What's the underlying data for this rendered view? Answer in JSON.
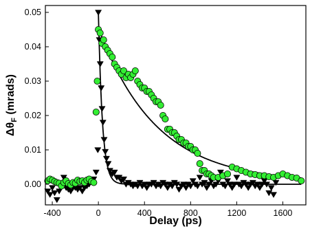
{
  "chart_data": {
    "type": "scatter",
    "title": "",
    "xlabel": "Delay (ps)",
    "ylabel_main": "Δθ",
    "ylabel_sub": "F",
    "ylabel_unit": " (mrads)",
    "xlim": [
      -460,
      1800
    ],
    "ylim": [
      -0.006,
      0.052
    ],
    "xticks": [
      -400,
      0,
      400,
      800,
      1200,
      1600
    ],
    "xtick_labels": [
      "-400",
      "0",
      "400",
      "800",
      "1200",
      "1600"
    ],
    "yticks": [
      0.0,
      0.01,
      0.02,
      0.03,
      0.04,
      0.05
    ],
    "ytick_labels": [
      "0.00",
      "0.01",
      "0.02",
      "0.03",
      "0.04",
      "0.05"
    ],
    "grid": false,
    "legend": "none",
    "series": [
      {
        "marker": "circle",
        "color": "#33ee33",
        "points": [
          [
            -440,
            0.001
          ],
          [
            -420,
            0.0015
          ],
          [
            -400,
            0.0012
          ],
          [
            -380,
            0.0008
          ],
          [
            -360,
            0.0005
          ],
          [
            -340,
            0.0003
          ],
          [
            -320,
            -0.0005
          ],
          [
            -300,
            0.0005
          ],
          [
            -280,
            0.001
          ],
          [
            -260,
            0.0002
          ],
          [
            -240,
            -0.0002
          ],
          [
            -220,
            0.0005
          ],
          [
            -200,
            0.0003
          ],
          [
            -180,
            0.0012
          ],
          [
            -160,
            0.0008
          ],
          [
            -140,
            0.001
          ],
          [
            -120,
            0.0005
          ],
          [
            -100,
            0.0012
          ],
          [
            -80,
            0.0015
          ],
          [
            -60,
            0.0008
          ],
          [
            -40,
            0.0005
          ],
          [
            -20,
            0.021
          ],
          [
            -10,
            0.03
          ],
          [
            0,
            0.045
          ],
          [
            15,
            0.044
          ],
          [
            30,
            0.041
          ],
          [
            45,
            0.042
          ],
          [
            60,
            0.04
          ],
          [
            80,
            0.039
          ],
          [
            100,
            0.038
          ],
          [
            120,
            0.037
          ],
          [
            140,
            0.035
          ],
          [
            160,
            0.034
          ],
          [
            180,
            0.033
          ],
          [
            200,
            0.032
          ],
          [
            220,
            0.033
          ],
          [
            240,
            0.031
          ],
          [
            260,
            0.032
          ],
          [
            280,
            0.031
          ],
          [
            300,
            0.032
          ],
          [
            320,
            0.033
          ],
          [
            340,
            0.03
          ],
          [
            360,
            0.029
          ],
          [
            380,
            0.028
          ],
          [
            400,
            0.028
          ],
          [
            420,
            0.027
          ],
          [
            440,
            0.027
          ],
          [
            460,
            0.026
          ],
          [
            480,
            0.025
          ],
          [
            500,
            0.024
          ],
          [
            520,
            0.024
          ],
          [
            540,
            0.023
          ],
          [
            560,
            0.02
          ],
          [
            580,
            0.019
          ],
          [
            600,
            0.016
          ],
          [
            620,
            0.016
          ],
          [
            640,
            0.015
          ],
          [
            660,
            0.015
          ],
          [
            680,
            0.014
          ],
          [
            700,
            0.013
          ],
          [
            720,
            0.013
          ],
          [
            740,
            0.012
          ],
          [
            760,
            0.012
          ],
          [
            780,
            0.011
          ],
          [
            800,
            0.011
          ],
          [
            820,
            0.01
          ],
          [
            840,
            0.01
          ],
          [
            860,
            0.009
          ],
          [
            880,
            0.006
          ],
          [
            900,
            0.004
          ],
          [
            920,
            0.004
          ],
          [
            940,
            0.003
          ],
          [
            960,
            0.003
          ],
          [
            980,
            0.0025
          ],
          [
            1000,
            0.002
          ],
          [
            1040,
            0.002
          ],
          [
            1080,
            0.0025
          ],
          [
            1120,
            0.003
          ],
          [
            1160,
            0.005
          ],
          [
            1200,
            0.0045
          ],
          [
            1240,
            0.004
          ],
          [
            1280,
            0.0035
          ],
          [
            1320,
            0.003
          ],
          [
            1360,
            0.0028
          ],
          [
            1400,
            0.0025
          ],
          [
            1440,
            0.0025
          ],
          [
            1480,
            0.0022
          ],
          [
            1520,
            0.002
          ],
          [
            1560,
            0.0025
          ],
          [
            1600,
            0.003
          ],
          [
            1640,
            0.0025
          ],
          [
            1680,
            0.002
          ],
          [
            1720,
            0.0018
          ],
          [
            1760,
            0.001
          ]
        ]
      },
      {
        "marker": "triangle-down",
        "color": "#000000",
        "points": [
          [
            -440,
            -0.002
          ],
          [
            -420,
            -0.003
          ],
          [
            -400,
            -0.001
          ],
          [
            -380,
            -0.0025
          ],
          [
            -360,
            -0.0045
          ],
          [
            -340,
            -0.002
          ],
          [
            -320,
            0.0
          ],
          [
            -300,
            0.002
          ],
          [
            -280,
            -0.001
          ],
          [
            -260,
            -0.0015
          ],
          [
            -240,
            -0.002
          ],
          [
            -220,
            -0.001
          ],
          [
            -200,
            -0.001
          ],
          [
            -180,
            -0.0015
          ],
          [
            -160,
            -0.001
          ],
          [
            -140,
            -0.002
          ],
          [
            -120,
            -0.001
          ],
          [
            -100,
            -0.0005
          ],
          [
            -80,
            0.0
          ],
          [
            -60,
            0.001
          ],
          [
            -40,
            0.0015
          ],
          [
            -20,
            0.0035
          ],
          [
            -5,
            0.01
          ],
          [
            0,
            0.05
          ],
          [
            8,
            0.042
          ],
          [
            16,
            0.035
          ],
          [
            24,
            0.028
          ],
          [
            32,
            0.022
          ],
          [
            40,
            0.018
          ],
          [
            50,
            0.013
          ],
          [
            60,
            0.0095
          ],
          [
            70,
            0.0075
          ],
          [
            85,
            0.006
          ],
          [
            100,
            0.004
          ],
          [
            120,
            0.003
          ],
          [
            140,
            0.0035
          ],
          [
            160,
            0.002
          ],
          [
            180,
            0.002
          ],
          [
            200,
            0.001
          ],
          [
            220,
            0.0015
          ],
          [
            240,
            0.0
          ],
          [
            260,
            0.0005
          ],
          [
            280,
            0.0
          ],
          [
            300,
            -0.0005
          ],
          [
            320,
            0.0
          ],
          [
            340,
            -0.0005
          ],
          [
            360,
            0.0005
          ],
          [
            380,
            -0.0005
          ],
          [
            400,
            0.0
          ],
          [
            420,
            -0.001
          ],
          [
            440,
            0.0
          ],
          [
            460,
            0.0
          ],
          [
            480,
            0.0005
          ],
          [
            500,
            -0.0005
          ],
          [
            520,
            0.0
          ],
          [
            540,
            -0.0005
          ],
          [
            560,
            0.0005
          ],
          [
            580,
            0.0
          ],
          [
            600,
            -0.001
          ],
          [
            620,
            0.0
          ],
          [
            640,
            -0.0005
          ],
          [
            660,
            0.0005
          ],
          [
            680,
            0.0
          ],
          [
            700,
            -0.0015
          ],
          [
            720,
            -0.0005
          ],
          [
            740,
            0.0
          ],
          [
            760,
            -0.001
          ],
          [
            780,
            0.0
          ],
          [
            800,
            -0.0005
          ],
          [
            820,
            0.001
          ],
          [
            840,
            0.0
          ],
          [
            860,
            -0.0005
          ],
          [
            880,
            0.002
          ],
          [
            900,
            0.0
          ],
          [
            920,
            0.0005
          ],
          [
            940,
            -0.001
          ],
          [
            960,
            0.0
          ],
          [
            980,
            0.001
          ],
          [
            1000,
            -0.0005
          ],
          [
            1020,
            0.0
          ],
          [
            1040,
            0.001
          ],
          [
            1060,
            0.0035
          ],
          [
            1080,
            0.0
          ],
          [
            1100,
            -0.0005
          ],
          [
            1120,
            0.001
          ],
          [
            1140,
            0.0
          ],
          [
            1160,
            -0.001
          ],
          [
            1180,
            0.0
          ],
          [
            1200,
            0.002
          ],
          [
            1220,
            0.0
          ],
          [
            1240,
            -0.0005
          ],
          [
            1260,
            0.0005
          ],
          [
            1280,
            0.0
          ],
          [
            1300,
            -0.001
          ],
          [
            1320,
            0.0
          ],
          [
            1340,
            0.0005
          ],
          [
            1360,
            -0.0005
          ],
          [
            1380,
            0.0
          ],
          [
            1400,
            -0.001
          ],
          [
            1420,
            0.0
          ],
          [
            1440,
            0.001
          ],
          [
            1460,
            0.0
          ],
          [
            1480,
            -0.0025
          ],
          [
            1500,
            -0.001
          ],
          [
            1520,
            -0.003
          ],
          [
            1540,
            0.0005
          ]
        ]
      }
    ],
    "fits": [
      {
        "color": "#000000",
        "x0": 0,
        "x1": 1760,
        "amplitude": 0.045,
        "tau": 500,
        "offset": 0.0005
      },
      {
        "color": "#000000",
        "x0": 0,
        "x1": 1760,
        "amplitude": 0.05,
        "tau": 35,
        "offset": 0.0
      }
    ]
  }
}
